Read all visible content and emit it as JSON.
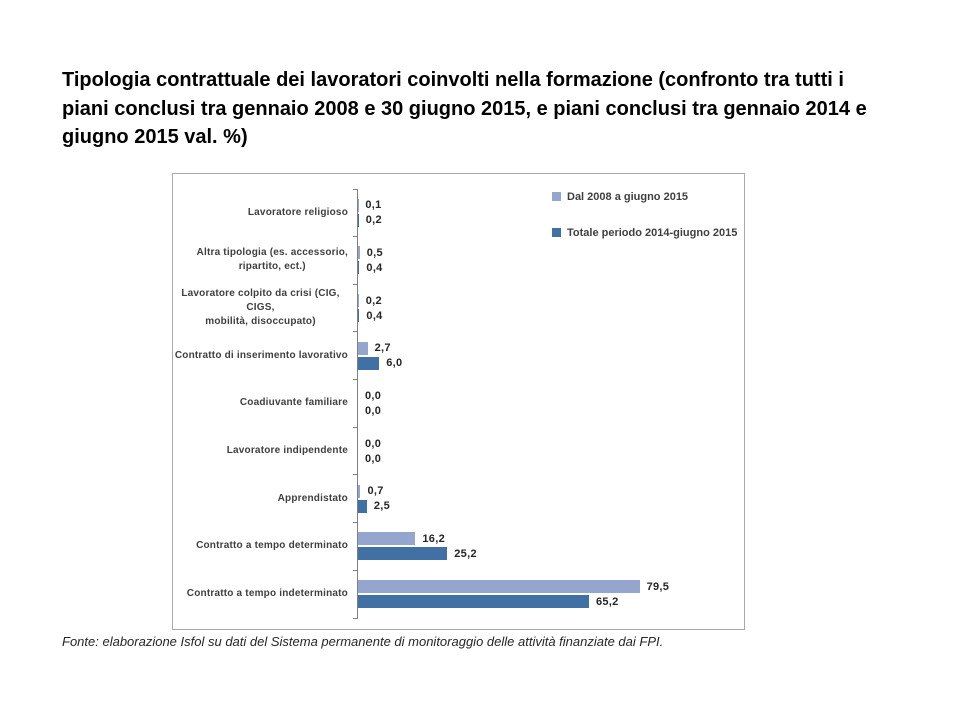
{
  "slide": {
    "title": "Tipologia contrattuale dei lavoratori coinvolti nella formazione (confronto tra tutti i piani conclusi tra gennaio 2008 e 30 giugno 2015, e piani conclusi tra gennaio 2014 e giugno 2015 val. %)",
    "source_note": "Fonte: elaborazione Isfol su dati del Sistema permanente di monitoraggio delle attività finanziate dai FPI."
  },
  "chart_data": {
    "type": "bar",
    "orientation": "horizontal",
    "title": "",
    "xlabel": "",
    "ylabel": "",
    "xlim": [
      0,
      107
    ],
    "grid": false,
    "value_labels": true,
    "legend_position": "top-right-inside",
    "categories": [
      "Lavoratore religioso",
      "Altra tipologia (es. accessorio,\nripartito, ect.)",
      "Lavoratore colpito da crisi (CIG, CIGS,\nmobilità, disoccupato)",
      "Contratto di inserimento lavorativo",
      "Coadiuvante familiare",
      "Lavoratore indipendente",
      "Apprendistato",
      "Contratto a tempo determinato",
      "Contratto a tempo indeterminato"
    ],
    "series": [
      {
        "name": "Dal 2008 a giugno 2015",
        "color": "#95A6CE",
        "values": [
          0.1,
          0.5,
          0.2,
          2.7,
          0.0,
          0.0,
          0.7,
          16.2,
          79.5
        ],
        "labels": [
          "0,1",
          "0,5",
          "0,2",
          "2,7",
          "0,0",
          "0,0",
          "0,7",
          "16,2",
          "79,5"
        ]
      },
      {
        "name": "Totale periodo 2014-giugno 2015",
        "color": "#4170A4",
        "values": [
          0.2,
          0.4,
          0.4,
          6.0,
          0.0,
          0.0,
          2.5,
          25.2,
          65.2
        ],
        "labels": [
          "0,2",
          "0,4",
          "0,4",
          "6,0",
          "0,0",
          "0,0",
          "2,5",
          "25,2",
          "65,2"
        ]
      }
    ],
    "axis_color": "#808080"
  }
}
